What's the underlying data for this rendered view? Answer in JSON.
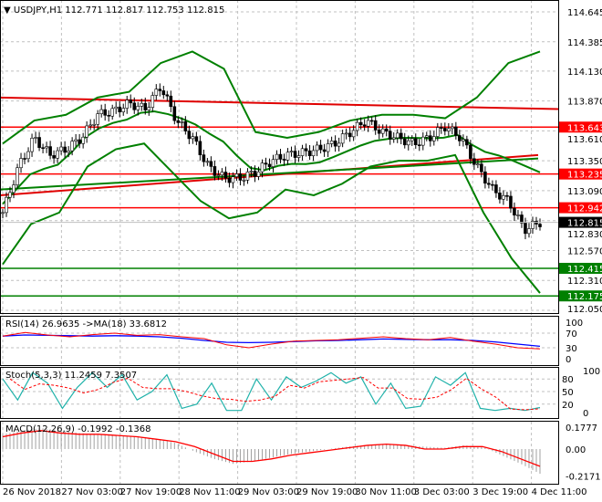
{
  "header": {
    "symbol": "USDJPY,H1",
    "ohlc": "112.771 112.817 112.753 112.815"
  },
  "chart_data": [
    {
      "type": "candlestick",
      "title": "USDJPY,H1",
      "ylim": [
        112.05,
        114.645
      ],
      "y_ticks": [
        "114.645",
        "114.385",
        "114.130",
        "113.870",
        "113.610",
        "113.350",
        "113.090",
        "112.830",
        "112.570",
        "112.310",
        "112.050"
      ],
      "x_ticks": [
        "26 Nov 2018",
        "27 Nov 03:00",
        "27 Nov 19:00",
        "28 Nov 11:00",
        "29 Nov 03:00",
        "29 Nov 19:00",
        "30 Nov 11:00",
        "3 Dec 03:00",
        "3 Dec 19:00",
        "4 Dec 11:00"
      ],
      "close": [
        112.9,
        113.3,
        113.55,
        113.4,
        113.45,
        113.55,
        113.75,
        113.78,
        113.85,
        113.8,
        114.0,
        113.7,
        113.55,
        113.3,
        113.2,
        113.2,
        113.25,
        113.35,
        113.4,
        113.42,
        113.45,
        113.5,
        113.6,
        113.7,
        113.6,
        113.55,
        113.5,
        113.55,
        113.65,
        113.55,
        113.3,
        113.1,
        113.0,
        112.75,
        112.815
      ],
      "bollinger_upper": [
        113.5,
        113.7,
        113.75,
        113.9,
        113.95,
        114.2,
        114.3,
        114.15,
        113.6,
        113.55,
        113.6,
        113.7,
        113.75,
        113.75,
        113.72,
        113.9,
        114.2,
        114.3
      ],
      "bollinger_lower": [
        112.45,
        112.8,
        112.9,
        113.3,
        113.45,
        113.5,
        113.25,
        113.0,
        112.85,
        112.9,
        113.1,
        113.05,
        113.15,
        113.3,
        113.35,
        113.35,
        113.4,
        112.9,
        112.5,
        112.2
      ],
      "levels": [
        {
          "value": "113.643",
          "color": "#ff0000"
        },
        {
          "value": "113.235",
          "color": "#ff0000"
        },
        {
          "value": "112.942",
          "color": "#ff0000"
        },
        {
          "value": "112.415",
          "color": "#008000"
        },
        {
          "value": "112.175",
          "color": "#008000"
        }
      ],
      "current_price": "112.815",
      "trendline_top": [
        113.9,
        113.8
      ],
      "trendline_lower": [
        113.05,
        113.4
      ],
      "ma_long": [
        113.1,
        113.37
      ]
    },
    {
      "type": "line",
      "title": "RSI(14) 26.9635  ->MA(18) 33.6812",
      "ylim": [
        0,
        100
      ],
      "y_ticks": [
        "100",
        "70",
        "30",
        "0"
      ],
      "rsi": [
        62,
        72,
        65,
        60,
        66,
        70,
        64,
        66,
        60,
        55,
        38,
        30,
        40,
        48,
        50,
        52,
        56,
        60,
        55,
        52,
        58,
        48,
        40,
        30,
        27
      ],
      "ma": [
        62,
        65,
        64,
        63,
        62,
        63,
        62,
        60,
        56,
        50,
        45,
        44,
        45,
        47,
        49,
        50,
        52,
        54,
        53,
        52,
        52,
        50,
        46,
        40,
        34
      ]
    },
    {
      "type": "line",
      "title": "Stoch(5,3,3) 11.2459 7.3507",
      "ylim": [
        0,
        100
      ],
      "y_ticks": [
        "100",
        "80",
        "50",
        "20",
        "0"
      ],
      "main": [
        80,
        30,
        95,
        70,
        10,
        60,
        95,
        60,
        90,
        30,
        50,
        90,
        10,
        20,
        70,
        5,
        5,
        80,
        30,
        85,
        60,
        75,
        95,
        70,
        85,
        20,
        70,
        10,
        15,
        85,
        65,
        95,
        10,
        5,
        10,
        5,
        12
      ]
    },
    {
      "type": "bar",
      "title": "MACD(12,26,9) -0.1992 -0.1368",
      "ylim": [
        -0.2171,
        0.1777
      ],
      "y_ticks": [
        "0.1777",
        "0.00",
        "-0.2171"
      ],
      "histogram": [
        0.12,
        0.15,
        0.17,
        0.15,
        0.13,
        0.12,
        0.11,
        0.1,
        0.08,
        0.05,
        -0.02,
        -0.08,
        -0.12,
        -0.1,
        -0.07,
        -0.04,
        -0.02,
        0.0,
        0.02,
        0.03,
        0.04,
        0.03,
        0.02,
        0.01,
        0.03,
        0.02,
        -0.05,
        -0.12,
        -0.2
      ],
      "signal": [
        0.1,
        0.13,
        0.15,
        0.13,
        0.12,
        0.12,
        0.11,
        0.1,
        0.08,
        0.06,
        0.02,
        -0.04,
        -0.1,
        -0.1,
        -0.08,
        -0.05,
        -0.03,
        -0.01,
        0.01,
        0.03,
        0.04,
        0.03,
        0.0,
        0.0,
        0.02,
        0.02,
        -0.02,
        -0.08,
        -0.14
      ]
    }
  ]
}
